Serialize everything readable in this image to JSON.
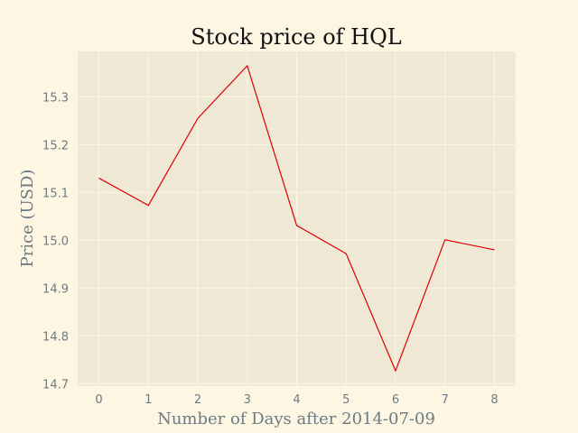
{
  "chart_data": {
    "type": "line",
    "title": "Stock price of HQL",
    "xlabel": "Number of Days after 2014-07-09",
    "ylabel": "Price (USD)",
    "x": [
      0,
      1,
      2,
      3,
      4,
      5,
      6,
      7,
      8
    ],
    "series": [
      {
        "values": [
          15.13,
          15.073,
          15.255,
          15.365,
          15.031,
          14.972,
          14.727,
          15.001,
          14.98
        ]
      }
    ],
    "xticks": [
      "0",
      "1",
      "2",
      "3",
      "4",
      "5",
      "6",
      "7",
      "8"
    ],
    "yticks": [
      "14.7",
      "14.8",
      "14.9",
      "15.0",
      "15.1",
      "15.2",
      "15.3"
    ],
    "xlim": [
      -0.43,
      8.43
    ],
    "ylim": [
      14.695,
      15.395
    ],
    "grid": true,
    "colors": {
      "figure_bg": "#fdf6e3",
      "plot_bg": "#eee8d5",
      "grid": "#fdf6e3",
      "line": "#dc0000",
      "axis_text": "#6b7b84",
      "title_text": "#111111"
    }
  }
}
